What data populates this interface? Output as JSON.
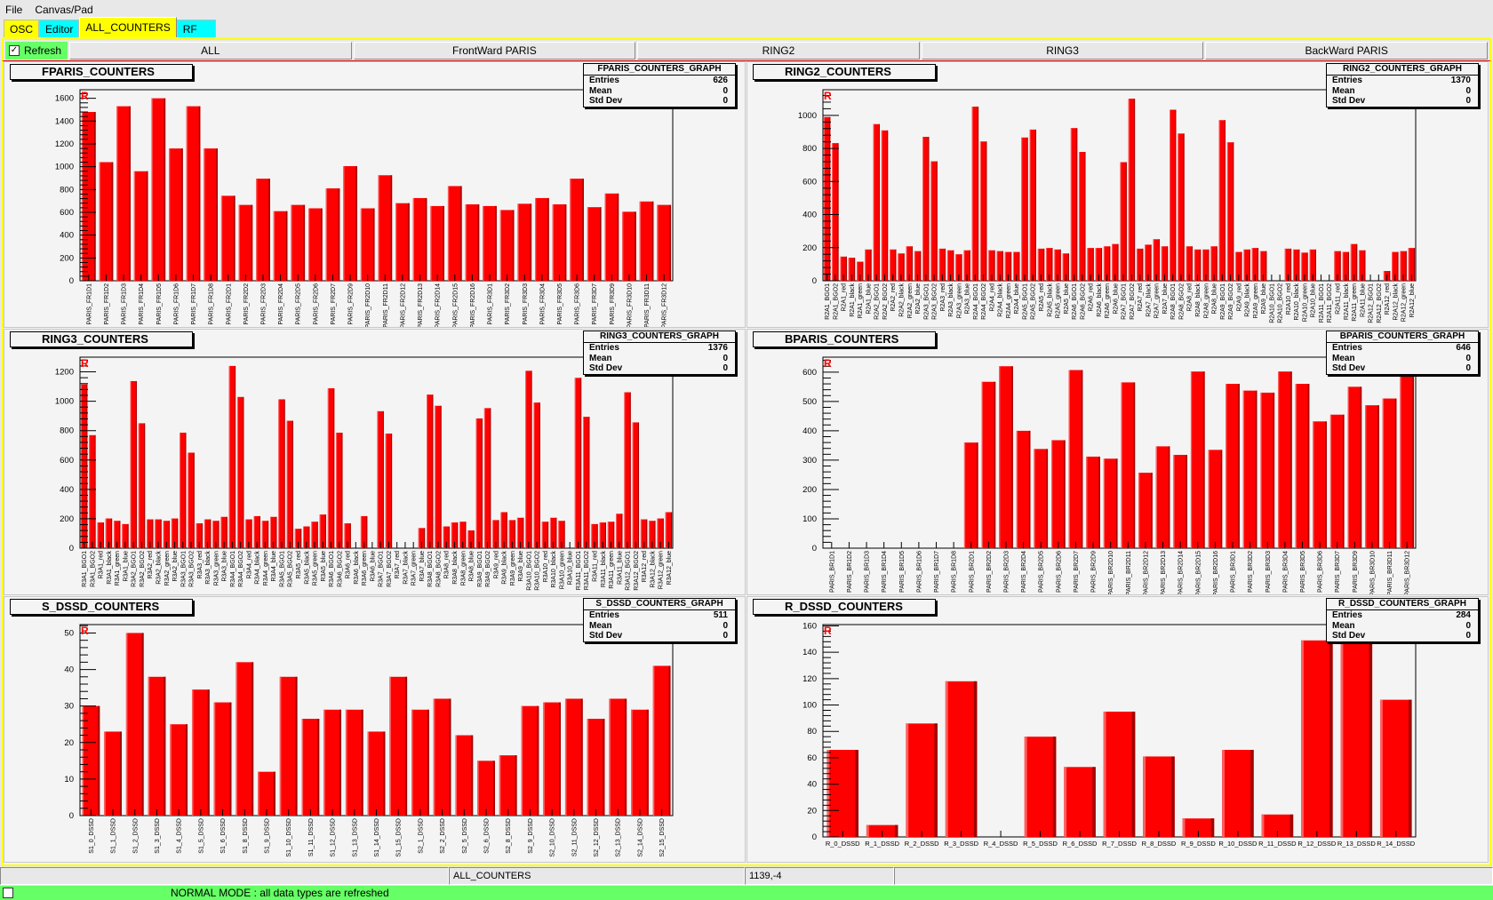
{
  "menu": {
    "file": "File",
    "canvas": "Canvas/Pad"
  },
  "tabs": [
    {
      "label": "OSC",
      "color": "#ffff00"
    },
    {
      "label": "Editor",
      "color": "#00ffff"
    },
    {
      "label": "ALL_COUNTERS",
      "color": "#ffff00",
      "selected": true
    },
    {
      "label": "RF",
      "color": "#00ffff"
    }
  ],
  "toolbar": {
    "refresh_label": "Refresh",
    "refresh_checked": true,
    "buttons": [
      "ALL",
      "FrontWard PARIS",
      "RING2",
      "RING3",
      "BackWard PARIS"
    ]
  },
  "status": {
    "cells": [
      "",
      "ALL_COUNTERS",
      "1139,-4",
      ""
    ],
    "mode_message": "NORMAL MODE : all data types are refreshed"
  },
  "colors": {
    "bar": "#ff0000",
    "accent_yellow": "#ffff00",
    "accent_cyan": "#00ffff",
    "status_green": "#66ff66"
  },
  "chart_data": [
    {
      "type": "bar",
      "title": "FPARIS_COUNTERS",
      "marker": "R",
      "stats": {
        "title": "FPARIS_COUNTERS_GRAPH",
        "entries": "626",
        "mean": "0",
        "std_dev": "0"
      },
      "ylim": [
        0,
        1675
      ],
      "yticks": [
        0,
        200,
        400,
        600,
        800,
        1000,
        1200,
        1400,
        1600
      ],
      "label_style": "angled",
      "categories": [
        "PARIS_FR1D1",
        "PARIS_FR1D2",
        "PARIS_FR1D3",
        "PARIS_FR1D4",
        "PARIS_FR1D5",
        "PARIS_FR1D6",
        "PARIS_FR1D7",
        "PARIS_FR1D8",
        "PARIS_FR2D1",
        "PARIS_FR2D2",
        "PARIS_FR2D3",
        "PARIS_FR2D4",
        "PARIS_FR2D5",
        "PARIS_FR2D6",
        "PARIS_FR2D7",
        "PARIS_FR2D9",
        "PARIS_FR2D10",
        "PARIS_FR2D11",
        "PARIS_FR2D12",
        "PARIS_FR2D13",
        "PARIS_FR2D14",
        "PARIS_FR2D15",
        "PARIS_FR2D16",
        "PARIS_FR3D1",
        "PARIS_FR3D2",
        "PARIS_FR3D3",
        "PARIS_FR3D4",
        "PARIS_FR3D5",
        "PARIS_FR3D6",
        "PARIS_FR3D7",
        "PARIS_FR3D9",
        "PARIS_FR3D10",
        "PARIS_FR3D11",
        "PARIS_FR3D12"
      ],
      "values": [
        1480,
        1040,
        1530,
        960,
        1600,
        1160,
        1530,
        1160,
        745,
        665,
        895,
        610,
        665,
        635,
        810,
        1005,
        635,
        925,
        680,
        725,
        655,
        830,
        670,
        655,
        620,
        675,
        725,
        670,
        895,
        645,
        765,
        605,
        695,
        665
      ]
    },
    {
      "type": "bar",
      "title": "RING2_COUNTERS",
      "marker": "R",
      "stats": {
        "title": "RING2_COUNTERS_GRAPH",
        "entries": "1370",
        "mean": "0",
        "std_dev": "0"
      },
      "ylim": [
        0,
        1155
      ],
      "yticks": [
        0,
        200,
        400,
        600,
        800,
        1000
      ],
      "label_style": "vertical",
      "categories": [
        "R2A1_BGO1",
        "R2A1_BGO2",
        "R2A1_red",
        "R2A1_black",
        "R2A1_green",
        "R2A1_blue",
        "R2A2_BGO1",
        "R2A2_BGO2",
        "R2A2_red",
        "R2A2_black",
        "R2A2_green",
        "R2A2_blue",
        "R2A3_BGO1",
        "R2A3_BGO2",
        "R2A3_red",
        "R2A3_black",
        "R2A3_green",
        "R2A3_blue",
        "R2A4_BGO1",
        "R2A4_BGO2",
        "R2A4_red",
        "R2A4_black",
        "R2A4_green",
        "R2A4_blue",
        "R2A5_BGO1",
        "R2A5_BGO2",
        "R2A5_red",
        "R2A5_black",
        "R2A5_green",
        "R2A5_blue",
        "R2A6_BGO1",
        "R2A6_BGO2",
        "R2A6_red",
        "R2A6_black",
        "R2A6_green",
        "R2A6_blue",
        "R2A7_BGO1",
        "R2A7_BGO2",
        "R2A7_red",
        "R2A7_black",
        "R2A7_green",
        "R2A7_blue",
        "R2A8_BGO1",
        "R2A8_BGO2",
        "R2A8_red",
        "R2A8_black",
        "R2A8_green",
        "R2A8_blue",
        "R2A9_BGO1",
        "R2A9_BGO2",
        "R2A9_red",
        "R2A9_black",
        "R2A9_green",
        "R2A9_blue",
        "R2A10_BGO1",
        "R2A10_BGO2",
        "R2A10_red",
        "R2A10_black",
        "R2A10_green",
        "R2A10_blue",
        "R2A11_BGO1",
        "R2A11_BGO2",
        "R2A11_red",
        "R2A11_black",
        "R2A11_green",
        "R2A11_blue",
        "R2A12_BGO1",
        "R2A12_BGO2",
        "R2A12_red",
        "R2A12_black",
        "R2A12_green",
        "R2A12_blue"
      ],
      "values": [
        990,
        832,
        146,
        139,
        115,
        189,
        947,
        909,
        189,
        165,
        208,
        179,
        870,
        722,
        194,
        184,
        160,
        184,
        1053,
        842,
        184,
        179,
        174,
        174,
        866,
        914,
        194,
        198,
        189,
        165,
        923,
        779,
        198,
        198,
        208,
        222,
        717,
        1101,
        194,
        218,
        251,
        208,
        1034,
        890,
        208,
        189,
        189,
        208,
        971,
        837,
        174,
        189,
        198,
        179,
        0,
        0,
        194,
        189,
        170,
        189,
        0,
        0,
        179,
        174,
        222,
        184,
        0,
        0,
        59,
        174,
        179,
        198
      ]
    },
    {
      "type": "bar",
      "title": "RING3_COUNTERS",
      "marker": "R",
      "stats": {
        "title": "RING3_COUNTERS_GRAPH",
        "entries": "1376",
        "mean": "0",
        "std_dev": "0"
      },
      "ylim": [
        0,
        1300
      ],
      "yticks": [
        0,
        200,
        400,
        600,
        800,
        1000,
        1200
      ],
      "label_style": "vertical",
      "categories": [
        "R3A1_BGO1",
        "R3A1_BGO2",
        "R3A1_red",
        "R3A1_black",
        "R3A1_green",
        "R3A1_blue",
        "R3A2_BGO1",
        "R3A2_BGO2",
        "R3A2_red",
        "R3A2_black",
        "R3A2_green",
        "R3A2_blue",
        "R3A3_BGO1",
        "R3A3_BGO2",
        "R3A3_red",
        "R3A3_black",
        "R3A3_green",
        "R3A3_blue",
        "R3A4_BGO1",
        "R3A4_BGO2",
        "R3A4_red",
        "R3A4_black",
        "R3A4_green",
        "R3A4_blue",
        "R3A5_BGO1",
        "R3A5_BGO2",
        "R3A5_red",
        "R3A5_black",
        "R3A5_green",
        "R3A5_blue",
        "R3A6_BGO1",
        "R3A6_BGO2",
        "R3A6_red",
        "R3A6_black",
        "R3A6_green",
        "R3A6_blue",
        "R3A7_BGO1",
        "R3A7_BGO2",
        "R3A7_red",
        "R3A7_black",
        "R3A7_green",
        "R3A7_blue",
        "R3A8_BGO1",
        "R3A8_BGO2",
        "R3A8_red",
        "R3A8_black",
        "R3A8_green",
        "R3A8_blue",
        "R3A9_BGO1",
        "R3A9_BGO2",
        "R3A9_red",
        "R3A9_black",
        "R3A9_green",
        "R3A9_blue",
        "R3A10_BGO1",
        "R3A10_BGO2",
        "R3A10_red",
        "R3A10_black",
        "R3A10_green",
        "R3A10_blue",
        "R3A11_BGO1",
        "R3A11_BGO2",
        "R3A11_red",
        "R3A11_black",
        "R3A11_green",
        "R3A11_blue",
        "R3A12_BGO1",
        "R3A12_BGO2",
        "R3A12_red",
        "R3A12_black",
        "R3A12_green",
        "R3A12_blue"
      ],
      "values": [
        1115,
        769,
        175,
        202,
        186,
        164,
        1137,
        850,
        196,
        196,
        186,
        202,
        786,
        650,
        169,
        196,
        186,
        213,
        1240,
        1029,
        196,
        218,
        186,
        213,
        1013,
        867,
        132,
        148,
        180,
        229,
        1088,
        786,
        169,
        0,
        218,
        0,
        932,
        780,
        0,
        0,
        0,
        137,
        1045,
        969,
        148,
        175,
        180,
        121,
        883,
        953,
        191,
        245,
        191,
        207,
        1207,
        991,
        180,
        207,
        186,
        0,
        1159,
        894,
        164,
        175,
        180,
        234,
        1061,
        856,
        196,
        186,
        202,
        245
      ]
    },
    {
      "type": "bar",
      "title": "BPARIS_COUNTERS",
      "marker": "R",
      "stats": {
        "title": "BPARIS_COUNTERS_GRAPH",
        "entries": "646",
        "mean": "0",
        "std_dev": "0"
      },
      "ylim": [
        0,
        651
      ],
      "yticks": [
        0,
        100,
        200,
        300,
        400,
        500,
        600
      ],
      "label_style": "angled",
      "categories": [
        "PARIS_BR1D1",
        "PARIS_BR1D2",
        "PARIS_BR1D3",
        "PARIS_BR1D4",
        "PARIS_BR1D5",
        "PARIS_BR1D6",
        "PARIS_BR1D7",
        "PARIS_BR1D8",
        "PARIS_BR2D1",
        "PARIS_BR2D2",
        "PARIS_BR2D3",
        "PARIS_BR2D4",
        "PARIS_BR2D5",
        "PARIS_BR2D6",
        "PARIS_BR2D7",
        "PARIS_BR2D9",
        "PARIS_BR2D10",
        "PARIS_BR2D11",
        "PARIS_BR2D12",
        "PARIS_BR2D13",
        "PARIS_BR2D14",
        "PARIS_BR2D15",
        "PARIS_BR2D16",
        "PARIS_BR3D1",
        "PARIS_BR3D2",
        "PARIS_BR3D3",
        "PARIS_BR3D4",
        "PARIS_BR3D5",
        "PARIS_BR3D6",
        "PARIS_BR3D7",
        "PARIS_BR3D9",
        "PARIS_BR3D10",
        "PARIS_BR3D11",
        "PARIS_BR3D12"
      ],
      "values": [
        0,
        0,
        0,
        0,
        0,
        0,
        0,
        0,
        360,
        567,
        620,
        400,
        338,
        368,
        607,
        312,
        305,
        565,
        257,
        347,
        318,
        602,
        335,
        560,
        537,
        530,
        602,
        560,
        432,
        455,
        550,
        487,
        510,
        588
      ]
    },
    {
      "type": "bar",
      "title": "S_DSSD_COUNTERS",
      "marker": "R",
      "stats": {
        "title": "S_DSSD_COUNTERS_GRAPH",
        "entries": "511",
        "mean": "0",
        "std_dev": "0"
      },
      "ylim": [
        0,
        52.3
      ],
      "yticks": [
        0,
        10,
        20,
        30,
        40,
        50
      ],
      "label_style": "angled",
      "categories": [
        "S1_0_DSSD",
        "S1_1_DSSD",
        "S1_2_DSSD",
        "S1_3_DSSD",
        "S1_4_DSSD",
        "S1_5_DSSD",
        "S1_6_DSSD",
        "S1_8_DSSD",
        "S1_9_DSSD",
        "S1_10_DSSD",
        "S1_11_DSSD",
        "S1_12_DSSD",
        "S1_13_DSSD",
        "S1_14_DSSD",
        "S1_15_DSSD",
        "S2_1_DSSD",
        "S2_2_DSSD",
        "S2_5_DSSD",
        "S2_6_DSSD",
        "S2_8_DSSD",
        "S2_9_DSSD",
        "S2_10_DSSD",
        "S2_11_DSSD",
        "S2_12_DSSD",
        "S2_13_DSSD",
        "S2_14_DSSD",
        "S2_15_DSSD"
      ],
      "values": [
        30,
        23,
        50,
        38,
        25,
        34.5,
        31,
        42,
        12,
        38,
        26.5,
        29,
        29,
        23,
        38,
        29,
        32,
        22,
        15,
        16.5,
        30,
        31,
        32,
        26.5,
        32,
        29,
        41
      ]
    },
    {
      "type": "bar",
      "title": "R_DSSD_COUNTERS",
      "marker": "R",
      "stats": {
        "title": "R_DSSD_COUNTERS_GRAPH",
        "entries": "284",
        "mean": "0",
        "std_dev": "0"
      },
      "ylim": [
        0,
        161
      ],
      "yticks": [
        0,
        20,
        40,
        60,
        80,
        100,
        120,
        140,
        160
      ],
      "label_style": "horizontal",
      "categories": [
        "R_0_DSSD",
        "R_1_DSSD",
        "R_2_DSSD",
        "R_3_DSSD",
        "R_4_DSSD",
        "R_5_DSSD",
        "R_6_DSSD",
        "R_7_DSSD",
        "R_8_DSSD",
        "R_9_DSSD",
        "R_10_DSSD",
        "R_11_DSSD",
        "R_12_DSSD",
        "R_13_DSSD",
        "R_14_DSSD"
      ],
      "values": [
        66,
        9,
        86,
        118,
        0,
        76,
        53,
        95,
        61,
        14,
        66,
        17,
        149,
        149,
        104
      ]
    }
  ]
}
